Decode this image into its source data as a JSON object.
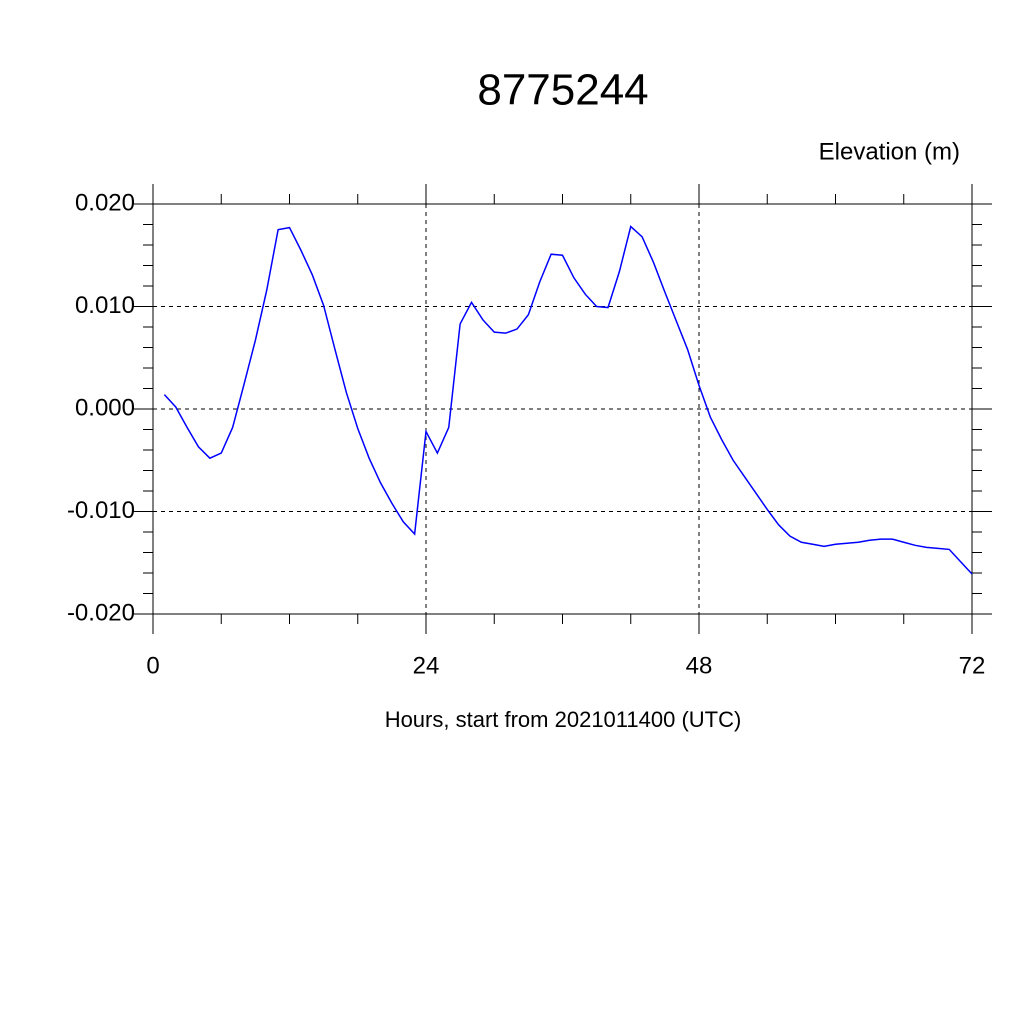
{
  "chart_data": {
    "type": "line",
    "title": "8775244",
    "y_label": "Elevation (m)",
    "x_label": "Hours, start from 2021011400 (UTC)",
    "x": [
      1,
      2,
      3,
      4,
      5,
      6,
      7,
      8,
      9,
      10,
      11,
      12,
      13,
      14,
      15,
      16,
      17,
      18,
      19,
      20,
      21,
      22,
      23,
      24,
      25,
      26,
      27,
      28,
      29,
      30,
      31,
      32,
      33,
      34,
      35,
      36,
      37,
      38,
      39,
      40,
      41,
      42,
      43,
      44,
      45,
      46,
      47,
      48,
      49,
      50,
      51,
      52,
      53,
      54,
      55,
      56,
      57,
      58,
      59,
      60,
      61,
      62,
      63,
      64,
      65,
      66,
      67,
      68,
      69,
      70,
      71,
      72
    ],
    "series": [
      {
        "name": "Elevation",
        "color": "#0000ff",
        "values": [
          0.0014,
          0.0002,
          -0.0018,
          -0.0037,
          -0.0048,
          -0.0043,
          -0.0018,
          0.0024,
          0.0067,
          0.0116,
          0.0175,
          0.0177,
          0.0155,
          0.0131,
          0.0101,
          0.0058,
          0.0016,
          -0.0019,
          -0.0048,
          -0.0072,
          -0.0092,
          -0.011,
          -0.0122,
          -0.0022,
          -0.0043,
          -0.0018,
          0.0083,
          0.0104,
          0.0087,
          0.0075,
          0.0074,
          0.0078,
          0.0092,
          0.0124,
          0.0151,
          0.015,
          0.0128,
          0.0112,
          0.01,
          0.0099,
          0.0134,
          0.0178,
          0.0168,
          0.0143,
          0.0114,
          0.0086,
          0.0058,
          0.0023,
          -0.0008,
          -0.003,
          -0.005,
          -0.0066,
          -0.0082,
          -0.0098,
          -0.0113,
          -0.0124,
          -0.013,
          -0.0132,
          -0.0134,
          -0.0132,
          -0.0131,
          -0.013,
          -0.0128,
          -0.0127,
          -0.0127,
          -0.013,
          -0.0133,
          -0.0135,
          -0.0136,
          -0.0137,
          -0.0149,
          -0.0161
        ]
      }
    ],
    "xlim": [
      0,
      72
    ],
    "ylim": [
      -0.02,
      0.02
    ],
    "xticks": [
      0,
      24,
      48,
      72
    ],
    "yticks": [
      {
        "value": -0.02,
        "label": "-0.020"
      },
      {
        "value": -0.01,
        "label": "-0.010"
      },
      {
        "value": 0,
        "label": "0.000"
      },
      {
        "value": 0.01,
        "label": "0.010"
      },
      {
        "value": 0.02,
        "label": "0.020"
      }
    ],
    "x_minor_ticks": [
      6,
      12,
      18,
      30,
      36,
      42,
      54,
      60,
      66
    ],
    "y_minor_ticks": [
      -0.018,
      -0.016,
      -0.014,
      -0.012,
      -0.008,
      -0.006,
      -0.004,
      -0.002,
      0.002,
      0.004,
      0.006,
      0.008,
      0.012,
      0.014,
      0.016,
      0.018
    ],
    "grid": true
  }
}
